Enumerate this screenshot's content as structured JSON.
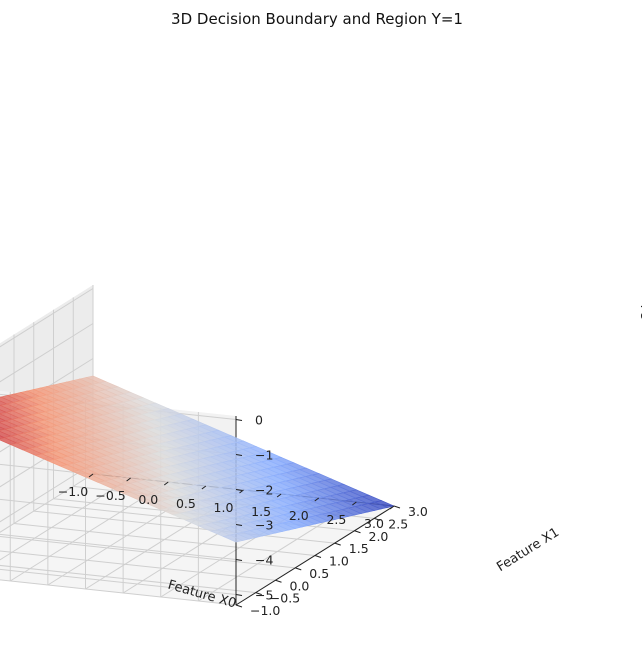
{
  "chart_data": {
    "type": "surface3d",
    "title": "3D Decision Boundary and Region Y=1",
    "xlabel": "Feature X0",
    "ylabel": "Feature X1",
    "zlabel": "Fe",
    "xlim": [
      -1.0,
      3.0
    ],
    "ylim": [
      -1.0,
      3.0
    ],
    "zlim": [
      -5.3,
      0.1
    ],
    "x_ticks": [
      -1.0,
      -0.5,
      0.0,
      0.5,
      1.0,
      1.5,
      2.0,
      2.5,
      3.0
    ],
    "y_ticks": [
      -1.0,
      -0.5,
      0.0,
      0.5,
      1.0,
      1.5,
      2.0,
      2.5,
      3.0
    ],
    "z_ticks": [
      0,
      -1,
      -2,
      -3,
      -4,
      -5
    ],
    "x_tick_labels": [
      "−1.0",
      "−0.5",
      "0.0",
      "0.5",
      "1.0",
      "1.5",
      "2.0",
      "2.5",
      "3.0"
    ],
    "y_tick_labels": [
      "−1.0",
      "−0.5",
      "0.0",
      "0.5",
      "1.0",
      "1.5",
      "2.0",
      "2.5",
      "3.0"
    ],
    "z_tick_labels": [
      "0",
      "−1",
      "−2",
      "−3",
      "−4",
      "−5"
    ],
    "colormap": "coolwarm",
    "color_high": "#b40426",
    "color_mid": "#dddddd",
    "color_low": "#3b4cc0",
    "surface_corners": [
      {
        "x": -1.0,
        "y": -1.0,
        "z": -0.7
      },
      {
        "x": 3.0,
        "y": -1.0,
        "z": -3.5
      },
      {
        "x": 3.0,
        "y": 3.0,
        "z": -5.3
      },
      {
        "x": -1.0,
        "y": 3.0,
        "z": -2.5
      }
    ],
    "grid": true
  }
}
